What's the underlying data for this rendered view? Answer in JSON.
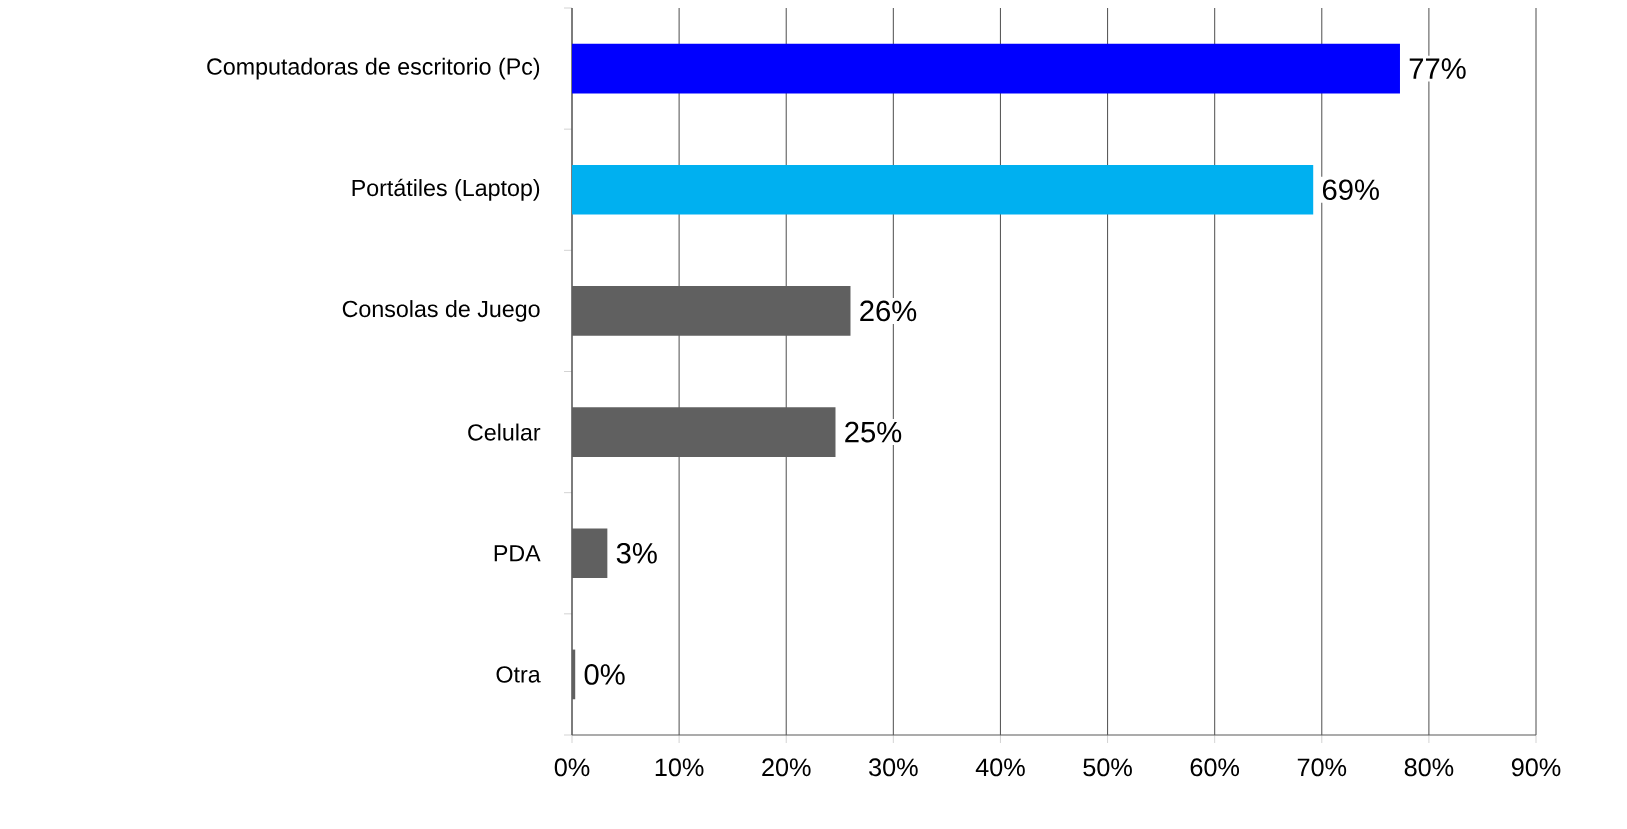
{
  "chart_data": {
    "type": "bar",
    "orientation": "horizontal",
    "categories": [
      "Computadoras de escritorio (Pc)",
      "Portátiles (Laptop)",
      "Consolas de Juego",
      "Celular",
      "PDA",
      "Otra"
    ],
    "values": [
      77.3,
      69.2,
      26,
      24.6,
      3.3,
      0.3
    ],
    "value_labels": [
      "77%",
      "69%",
      "26%",
      "25%",
      "3%",
      "0%"
    ],
    "colors": [
      "#0000ff",
      "#00b0f0",
      "#606060",
      "#606060",
      "#606060",
      "#606060"
    ],
    "xlim": [
      0,
      90
    ],
    "xticks": [
      {
        "value": 0,
        "label": "0%"
      },
      {
        "value": 10,
        "label": "10%"
      },
      {
        "value": 20,
        "label": "20%"
      },
      {
        "value": 30,
        "label": "30%"
      },
      {
        "value": 40,
        "label": "40%"
      },
      {
        "value": 50,
        "label": "50%"
      },
      {
        "value": 60,
        "label": "60%"
      },
      {
        "value": 70,
        "label": "70%"
      },
      {
        "value": 80,
        "label": "80%"
      },
      {
        "value": 90,
        "label": "90%"
      }
    ],
    "grid": "x"
  }
}
